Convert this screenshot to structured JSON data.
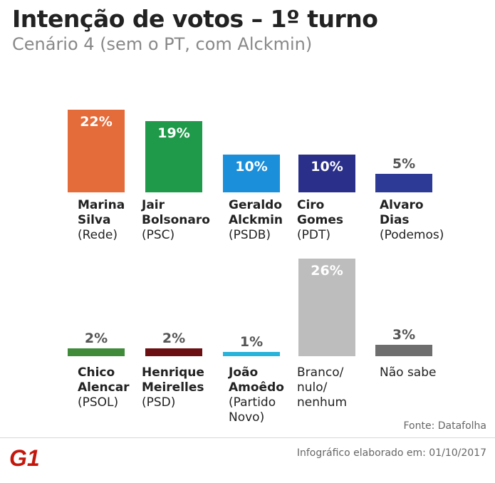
{
  "header": {
    "title": "Intenção de votos – 1º turno",
    "subtitle": "Cenário 4 (sem o PT, com Alckmin)"
  },
  "chart_data": {
    "type": "bar",
    "unit": "%",
    "ylim": [
      0,
      30
    ],
    "bars": [
      {
        "name_lines": [
          "Marina",
          "Silva"
        ],
        "party_lines": [
          "(Rede)"
        ],
        "value": 22,
        "label": "22%",
        "color": "#E46B3A",
        "label_color": "#FFFFFF"
      },
      {
        "name_lines": [
          "Jair",
          "Bolsonaro"
        ],
        "party_lines": [
          "(PSC)"
        ],
        "value": 19,
        "label": "19%",
        "color": "#1F9A4A",
        "label_color": "#FFFFFF"
      },
      {
        "name_lines": [
          "Geraldo",
          "Alckmin"
        ],
        "party_lines": [
          "(PSDB)"
        ],
        "value": 10,
        "label": "10%",
        "color": "#1B8FDA",
        "label_color": "#FFFFFF"
      },
      {
        "name_lines": [
          "Ciro",
          "Gomes"
        ],
        "party_lines": [
          "(PDT)"
        ],
        "value": 10,
        "label": "10%",
        "color": "#2A2F8A",
        "label_color": "#FFFFFF"
      },
      {
        "name_lines": [
          "Alvaro",
          "Dias"
        ],
        "party_lines": [
          "(Podemos)"
        ],
        "value": 5,
        "label": "5%",
        "color": "#2E3B96",
        "label_color": "#555555"
      },
      {
        "name_lines": [
          "Chico",
          "Alencar"
        ],
        "party_lines": [
          "(PSOL)"
        ],
        "value": 2,
        "label": "2%",
        "color": "#3F8B3A",
        "label_color": "#555555"
      },
      {
        "name_lines": [
          "Henrique",
          "Meirelles"
        ],
        "party_lines": [
          "(PSD)"
        ],
        "value": 2,
        "label": "2%",
        "color": "#6B0F12",
        "label_color": "#555555"
      },
      {
        "name_lines": [
          "João",
          "Amoêdo"
        ],
        "party_lines": [
          "(Partido",
          "Novo)"
        ],
        "value": 1,
        "label": "1%",
        "color": "#28B3DA",
        "label_color": "#555555"
      },
      {
        "name_lines": [],
        "party_lines": [
          "Branco/",
          "nulo/",
          "nenhum"
        ],
        "value": 26,
        "label": "26%",
        "color": "#BDBDBD",
        "label_color": "#FFFFFF"
      },
      {
        "name_lines": [],
        "party_lines": [
          "Não sabe"
        ],
        "value": 3,
        "label": "3%",
        "color": "#6E6E6E",
        "label_color": "#555555"
      }
    ]
  },
  "footer": {
    "source": "Fonte: Datafolha",
    "credit": "Infográfico elaborado em: 01/10/2017",
    "logo_text": "G1",
    "logo_color": "#C4170C"
  }
}
